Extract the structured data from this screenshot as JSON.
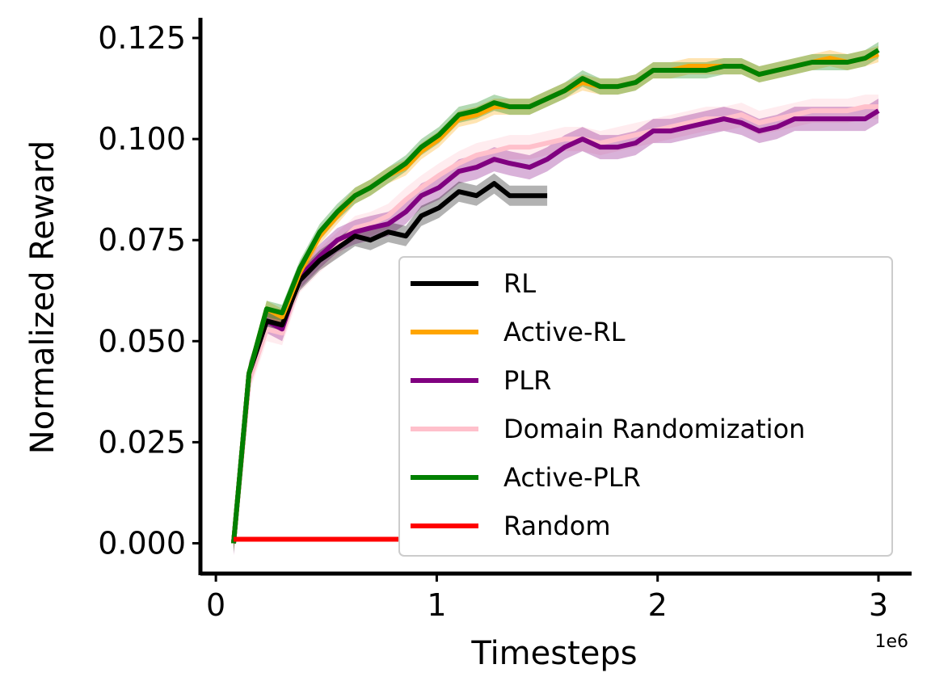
{
  "chart_data": {
    "type": "line",
    "xlabel": "Timesteps",
    "ylabel": "Normalized Reward",
    "x_offset_label": "1e6",
    "xlim": [
      -0.07,
      3.15
    ],
    "ylim": [
      -0.0075,
      0.13
    ],
    "x_ticks": [
      0,
      1,
      2,
      3
    ],
    "x_tick_labels": [
      "0",
      "1",
      "2",
      "3"
    ],
    "y_ticks": [
      0.0,
      0.025,
      0.05,
      0.075,
      0.1,
      0.125
    ],
    "y_tick_labels": [
      "0.000",
      "0.025",
      "0.050",
      "0.075",
      "0.100",
      "0.125"
    ],
    "grid": false,
    "legend_position": "lower-right",
    "series": [
      {
        "name": "Domain Randomization",
        "color": "#ffc0cb",
        "band": 0.003,
        "x": [
          0.08,
          0.15,
          0.23,
          0.3,
          0.38,
          0.47,
          0.55,
          0.63,
          0.7,
          0.78,
          0.86,
          0.93,
          1.01,
          1.1,
          1.18,
          1.26,
          1.33,
          1.42,
          1.5,
          1.58,
          1.66,
          1.74,
          1.82,
          1.9,
          1.98,
          2.06,
          2.14,
          2.22,
          2.3,
          2.38,
          2.46,
          2.54,
          2.62,
          2.7,
          2.78,
          2.86,
          2.94,
          3.0
        ],
        "y": [
          0.0,
          0.04,
          0.053,
          0.052,
          0.065,
          0.07,
          0.074,
          0.078,
          0.079,
          0.081,
          0.085,
          0.088,
          0.091,
          0.094,
          0.096,
          0.097,
          0.098,
          0.098,
          0.099,
          0.1,
          0.1,
          0.099,
          0.1,
          0.101,
          0.102,
          0.103,
          0.104,
          0.105,
          0.105,
          0.106,
          0.104,
          0.105,
          0.106,
          0.107,
          0.107,
          0.107,
          0.108,
          0.108
        ]
      },
      {
        "name": "PLR",
        "color": "#800080",
        "band": 0.003,
        "x": [
          0.08,
          0.15,
          0.23,
          0.3,
          0.38,
          0.47,
          0.55,
          0.63,
          0.7,
          0.78,
          0.86,
          0.93,
          1.01,
          1.1,
          1.18,
          1.26,
          1.33,
          1.42,
          1.5,
          1.58,
          1.66,
          1.74,
          1.82,
          1.9,
          1.98,
          2.06,
          2.14,
          2.22,
          2.3,
          2.38,
          2.46,
          2.54,
          2.62,
          2.7,
          2.78,
          2.86,
          2.94,
          3.0
        ],
        "y": [
          0.0,
          0.042,
          0.055,
          0.053,
          0.066,
          0.071,
          0.075,
          0.077,
          0.078,
          0.079,
          0.082,
          0.086,
          0.088,
          0.092,
          0.093,
          0.095,
          0.094,
          0.093,
          0.095,
          0.098,
          0.1,
          0.098,
          0.098,
          0.099,
          0.102,
          0.102,
          0.103,
          0.104,
          0.105,
          0.104,
          0.102,
          0.103,
          0.105,
          0.105,
          0.105,
          0.105,
          0.105,
          0.107
        ]
      },
      {
        "name": "RL",
        "color": "#000000",
        "band": 0.0025,
        "x": [
          0.08,
          0.15,
          0.23,
          0.3,
          0.38,
          0.47,
          0.55,
          0.63,
          0.7,
          0.78,
          0.86,
          0.93,
          1.01,
          1.1,
          1.18,
          1.26,
          1.33,
          1.42,
          1.5
        ],
        "y": [
          0.0,
          0.042,
          0.055,
          0.054,
          0.065,
          0.07,
          0.073,
          0.076,
          0.075,
          0.077,
          0.076,
          0.081,
          0.083,
          0.087,
          0.086,
          0.089,
          0.086,
          0.086,
          0.086
        ]
      },
      {
        "name": "Active-RL",
        "color": "#ffa500",
        "band": 0.002,
        "x": [
          0.08,
          0.15,
          0.23,
          0.3,
          0.38,
          0.47,
          0.55,
          0.63,
          0.7,
          0.78,
          0.86,
          0.93,
          1.01,
          1.1,
          1.18,
          1.26,
          1.33,
          1.42,
          1.5,
          1.58,
          1.66,
          1.74,
          1.82,
          1.9,
          1.98,
          2.06,
          2.14,
          2.22,
          2.3,
          2.38,
          2.46,
          2.54,
          2.62,
          2.7,
          2.78,
          2.86,
          2.94,
          3.0
        ],
        "y": [
          0.0,
          0.042,
          0.058,
          0.056,
          0.067,
          0.076,
          0.081,
          0.086,
          0.088,
          0.091,
          0.093,
          0.097,
          0.1,
          0.105,
          0.106,
          0.108,
          0.108,
          0.108,
          0.11,
          0.112,
          0.114,
          0.113,
          0.113,
          0.114,
          0.117,
          0.117,
          0.118,
          0.118,
          0.118,
          0.118,
          0.116,
          0.117,
          0.118,
          0.119,
          0.12,
          0.119,
          0.12,
          0.121
        ]
      },
      {
        "name": "Active-PLR",
        "color": "#008000",
        "band": 0.002,
        "x": [
          0.08,
          0.15,
          0.23,
          0.3,
          0.38,
          0.47,
          0.55,
          0.63,
          0.7,
          0.78,
          0.86,
          0.93,
          1.01,
          1.1,
          1.18,
          1.26,
          1.33,
          1.42,
          1.5,
          1.58,
          1.66,
          1.74,
          1.82,
          1.9,
          1.98,
          2.06,
          2.14,
          2.22,
          2.3,
          2.38,
          2.46,
          2.54,
          2.62,
          2.7,
          2.78,
          2.86,
          2.94,
          3.0
        ],
        "y": [
          0.0,
          0.042,
          0.058,
          0.057,
          0.068,
          0.077,
          0.082,
          0.086,
          0.088,
          0.091,
          0.094,
          0.098,
          0.101,
          0.106,
          0.107,
          0.109,
          0.108,
          0.108,
          0.11,
          0.112,
          0.115,
          0.113,
          0.113,
          0.114,
          0.117,
          0.117,
          0.117,
          0.117,
          0.118,
          0.118,
          0.116,
          0.117,
          0.118,
          0.119,
          0.119,
          0.119,
          0.12,
          0.122
        ]
      },
      {
        "name": "Random",
        "color": "#ff0000",
        "band": 0,
        "x": [
          0.08,
          0.83
        ],
        "y": [
          0.001,
          0.001
        ]
      }
    ],
    "legend_order": [
      "RL",
      "Active-RL",
      "PLR",
      "Domain Randomization",
      "Active-PLR",
      "Random"
    ]
  }
}
